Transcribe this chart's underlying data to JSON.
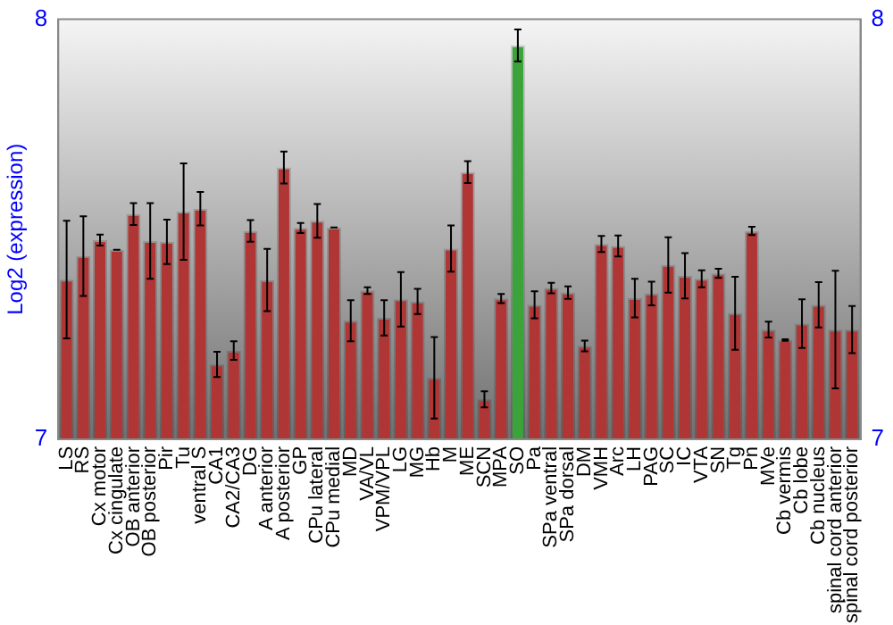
{
  "chart_data": {
    "type": "bar",
    "ylabel": "Log2 (expression)",
    "categories": [
      "LS",
      "RS",
      "Cx motor",
      "Cx cingulate",
      "OB anterior",
      "OB posterior",
      "Pir",
      "Tu",
      "ventral S",
      "CA1",
      "CA2/CA3",
      "DG",
      "A anterior",
      "A posterior",
      "GP",
      "CPu lateral",
      "CPu medial",
      "MD",
      "VA/VL",
      "VPM/VPL",
      "LG",
      "MG",
      "Hb",
      "M",
      "ME",
      "SCN",
      "MPA",
      "SO",
      "Pa",
      "SPa ventral",
      "SPa dorsal",
      "DM",
      "VMH",
      "Arc",
      "LH",
      "PAG",
      "SC",
      "IC",
      "VTA",
      "SN",
      "Tg",
      "Pn",
      "MVe",
      "Cb vermis",
      "Cb lobe",
      "Cb nucleus",
      "spinal cord anterior",
      "spinal cord posterior"
    ],
    "values": [
      7.38,
      7.436,
      7.474,
      7.451,
      7.536,
      7.472,
      7.47,
      7.542,
      7.549,
      7.178,
      7.211,
      7.496,
      7.379,
      7.647,
      7.503,
      7.52,
      7.504,
      7.282,
      7.354,
      7.289,
      7.333,
      7.328,
      7.146,
      7.454,
      7.636,
      7.095,
      7.335,
      7.938,
      7.32,
      7.36,
      7.349,
      7.222,
      7.465,
      7.46,
      7.336,
      7.347,
      7.415,
      7.389,
      7.382,
      7.395,
      7.3,
      7.496,
      7.261,
      7.236,
      7.275,
      7.32,
      7.261,
      7.261
    ],
    "errors": [
      0.14,
      0.095,
      0.013,
      0,
      0.026,
      0.09,
      0.053,
      0.115,
      0.04,
      0.03,
      0.022,
      0.026,
      0.074,
      0.038,
      0.012,
      0.04,
      0,
      0.049,
      0.008,
      0.042,
      0.065,
      0.03,
      0.097,
      0.055,
      0.026,
      0.019,
      0.011,
      0.038,
      0.032,
      0.0125,
      0.015,
      0.013,
      0.019,
      0.025,
      0.046,
      0.028,
      0.066,
      0.054,
      0.02,
      0.011,
      0.087,
      0.01,
      0.019,
      0.002,
      0.058,
      0.054,
      0.14,
      0.056
    ],
    "colors": [
      "#b03535",
      "#b03535",
      "#b03535",
      "#b03535",
      "#b03535",
      "#b03535",
      "#b03535",
      "#b03535",
      "#b03535",
      "#b03535",
      "#b03535",
      "#b03535",
      "#b03535",
      "#b03535",
      "#b03535",
      "#b03535",
      "#b03535",
      "#b03535",
      "#b03535",
      "#b03535",
      "#b03535",
      "#b03535",
      "#b03535",
      "#b03535",
      "#b03535",
      "#b03535",
      "#b03535",
      "#3aa33a",
      "#b03535",
      "#b03535",
      "#b03535",
      "#b03535",
      "#b03535",
      "#b03535",
      "#b03535",
      "#b03535",
      "#b03535",
      "#b03535",
      "#b03535",
      "#b03535",
      "#b03535",
      "#b03535",
      "#b03535",
      "#b03535",
      "#b03535",
      "#b03535",
      "#b03535",
      "#b03535"
    ],
    "ylim": [
      7,
      8
    ],
    "yticks": [
      7,
      8
    ],
    "y2lim": [
      7,
      8
    ],
    "y2ticks": [
      7,
      8
    ],
    "grid": false,
    "legend": false
  }
}
